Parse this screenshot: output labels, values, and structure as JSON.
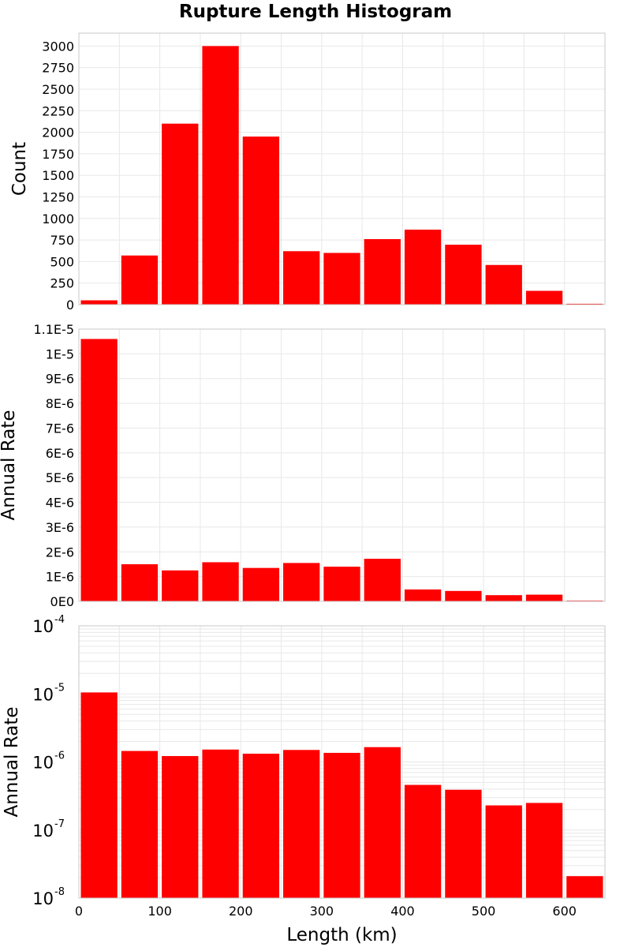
{
  "title": "Rupture Length Histogram",
  "colors": {
    "bar": "#ff0000",
    "grid": "#e8e8e8",
    "frame": "#c8c8c8"
  },
  "chart_data": [
    {
      "type": "bar",
      "name": "count-histogram",
      "ylabel": "Count",
      "x_bins_start": [
        0,
        50,
        100,
        150,
        200,
        250,
        300,
        350,
        400,
        450,
        500,
        550,
        600
      ],
      "bin_width": 50,
      "values": [
        50,
        570,
        2100,
        3000,
        1950,
        620,
        600,
        760,
        870,
        695,
        460,
        160,
        10
      ],
      "xlim": [
        0,
        650
      ],
      "ylim": [
        0,
        3150
      ],
      "yscale": "linear",
      "yticks": [
        0,
        250,
        500,
        750,
        1000,
        1250,
        1500,
        1750,
        2000,
        2250,
        2500,
        2750,
        3000
      ],
      "ytick_labels": [
        "0",
        "250",
        "500",
        "750",
        "1000",
        "1250",
        "1500",
        "1750",
        "2000",
        "2250",
        "2500",
        "2750",
        "3000"
      ]
    },
    {
      "type": "bar",
      "name": "rate-histogram-linear",
      "ylabel": "Annual Rate",
      "x_bins_start": [
        0,
        50,
        100,
        150,
        200,
        250,
        300,
        350,
        400,
        450,
        500,
        550,
        600
      ],
      "bin_width": 50,
      "values": [
        1.06e-05,
        1.5e-06,
        1.25e-06,
        1.58e-06,
        1.35e-06,
        1.55e-06,
        1.4e-06,
        1.72e-06,
        4.8e-07,
        4.2e-07,
        2.5e-07,
        2.7e-07,
        3e-08
      ],
      "xlim": [
        0,
        650
      ],
      "ylim": [
        0,
        1.1e-05
      ],
      "yscale": "linear",
      "yticks": [
        0,
        1e-06,
        2e-06,
        3e-06,
        4e-06,
        5e-06,
        6e-06,
        7e-06,
        8e-06,
        9e-06,
        1e-05,
        1.1e-05
      ],
      "ytick_labels": [
        "0E0",
        "1E-6",
        "2E-6",
        "3E-6",
        "4E-6",
        "5E-6",
        "6E-6",
        "7E-6",
        "8E-6",
        "9E-6",
        "1E-5",
        "1.1E-5"
      ]
    },
    {
      "type": "bar",
      "name": "rate-histogram-log",
      "ylabel": "Annual Rate",
      "xlabel": "Length (km)",
      "x_bins_start": [
        0,
        50,
        100,
        150,
        200,
        250,
        300,
        350,
        400,
        450,
        500,
        550,
        600
      ],
      "bin_width": 50,
      "values": [
        1.05e-05,
        1.45e-06,
        1.22e-06,
        1.52e-06,
        1.32e-06,
        1.5e-06,
        1.36e-06,
        1.65e-06,
        4.6e-07,
        3.9e-07,
        2.3e-07,
        2.5e-07,
        2.1e-08
      ],
      "xlim": [
        0,
        650
      ],
      "ylim": [
        1e-08,
        0.0001
      ],
      "yscale": "log",
      "yticks": [
        1e-08,
        1e-07,
        1e-06,
        1e-05,
        0.0001
      ],
      "ytick_labels": [
        {
          "base": "10",
          "exp": "-8"
        },
        {
          "base": "10",
          "exp": "-7"
        },
        {
          "base": "10",
          "exp": "-6"
        },
        {
          "base": "10",
          "exp": "-5"
        },
        {
          "base": "10",
          "exp": "-4"
        }
      ],
      "xticks": [
        0,
        100,
        200,
        300,
        400,
        500,
        600
      ],
      "xtick_labels": [
        "0",
        "100",
        "200",
        "300",
        "400",
        "500",
        "600"
      ]
    }
  ]
}
